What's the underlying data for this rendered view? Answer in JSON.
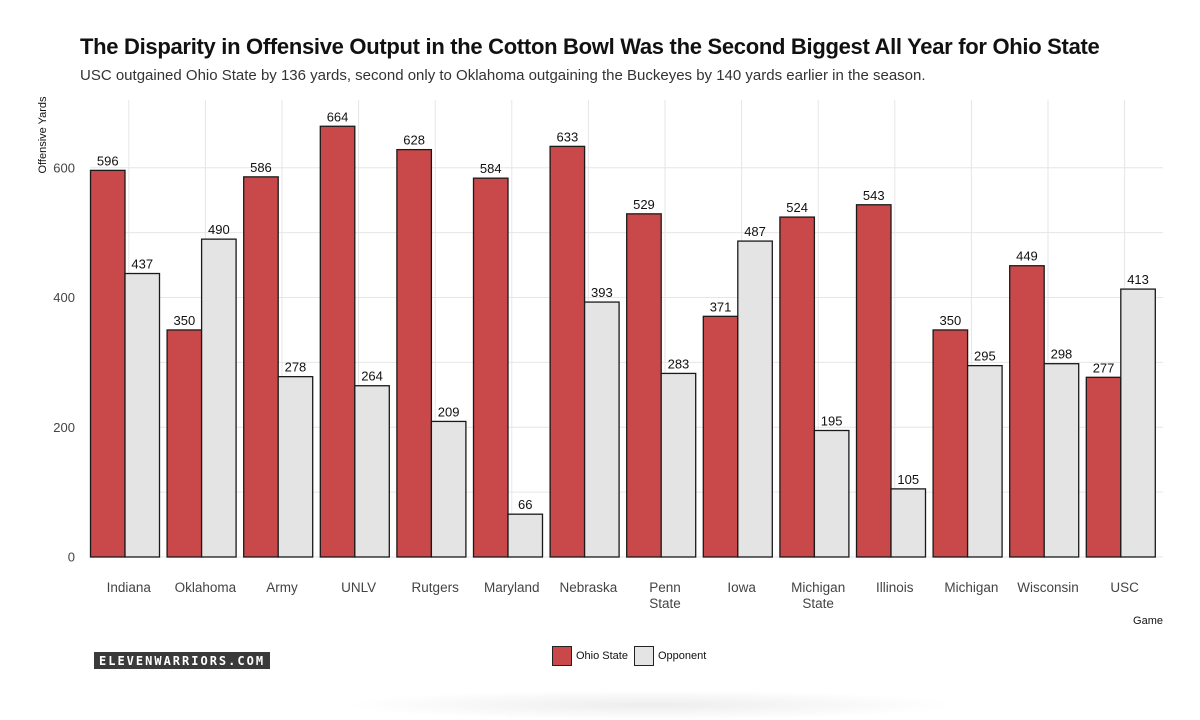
{
  "colors": {
    "ohio_state": "#c9484a",
    "opponent": "#e4e4e4",
    "grid": "#e6e6e6",
    "outline": "#1a1a1a"
  },
  "chart_data": {
    "type": "bar",
    "title": "The Disparity in Offensive Output in the Cotton Bowl Was the Second Biggest All Year for Ohio State",
    "subtitle": "USC outgained Ohio State by 136 yards, second only to Oklahoma outgaining the Buckeyes by 140 yards earlier in the season.",
    "xlabel": "Game",
    "ylabel": "Offensive Yards",
    "ylim": [
      0,
      690
    ],
    "yticks": [
      0,
      200,
      400,
      600
    ],
    "grid": true,
    "legend_position": "bottom",
    "categories": [
      [
        "Indiana"
      ],
      [
        "Oklahoma"
      ],
      [
        "Army"
      ],
      [
        "UNLV"
      ],
      [
        "Rutgers"
      ],
      [
        "Maryland"
      ],
      [
        "Nebraska"
      ],
      [
        "Penn",
        "State"
      ],
      [
        "Iowa"
      ],
      [
        "Michigan",
        "State"
      ],
      [
        "Illinois"
      ],
      [
        "Michigan"
      ],
      [
        "Wisconsin"
      ],
      [
        "USC"
      ]
    ],
    "series": [
      {
        "name": "Ohio State",
        "values": [
          596,
          350,
          586,
          664,
          628,
          584,
          633,
          529,
          371,
          524,
          543,
          350,
          449,
          277
        ]
      },
      {
        "name": "Opponent",
        "values": [
          437,
          490,
          278,
          264,
          209,
          66,
          393,
          283,
          487,
          195,
          105,
          295,
          298,
          413
        ]
      }
    ]
  },
  "branding": {
    "logo_text": "ELEVENWARRIORS.COM"
  }
}
